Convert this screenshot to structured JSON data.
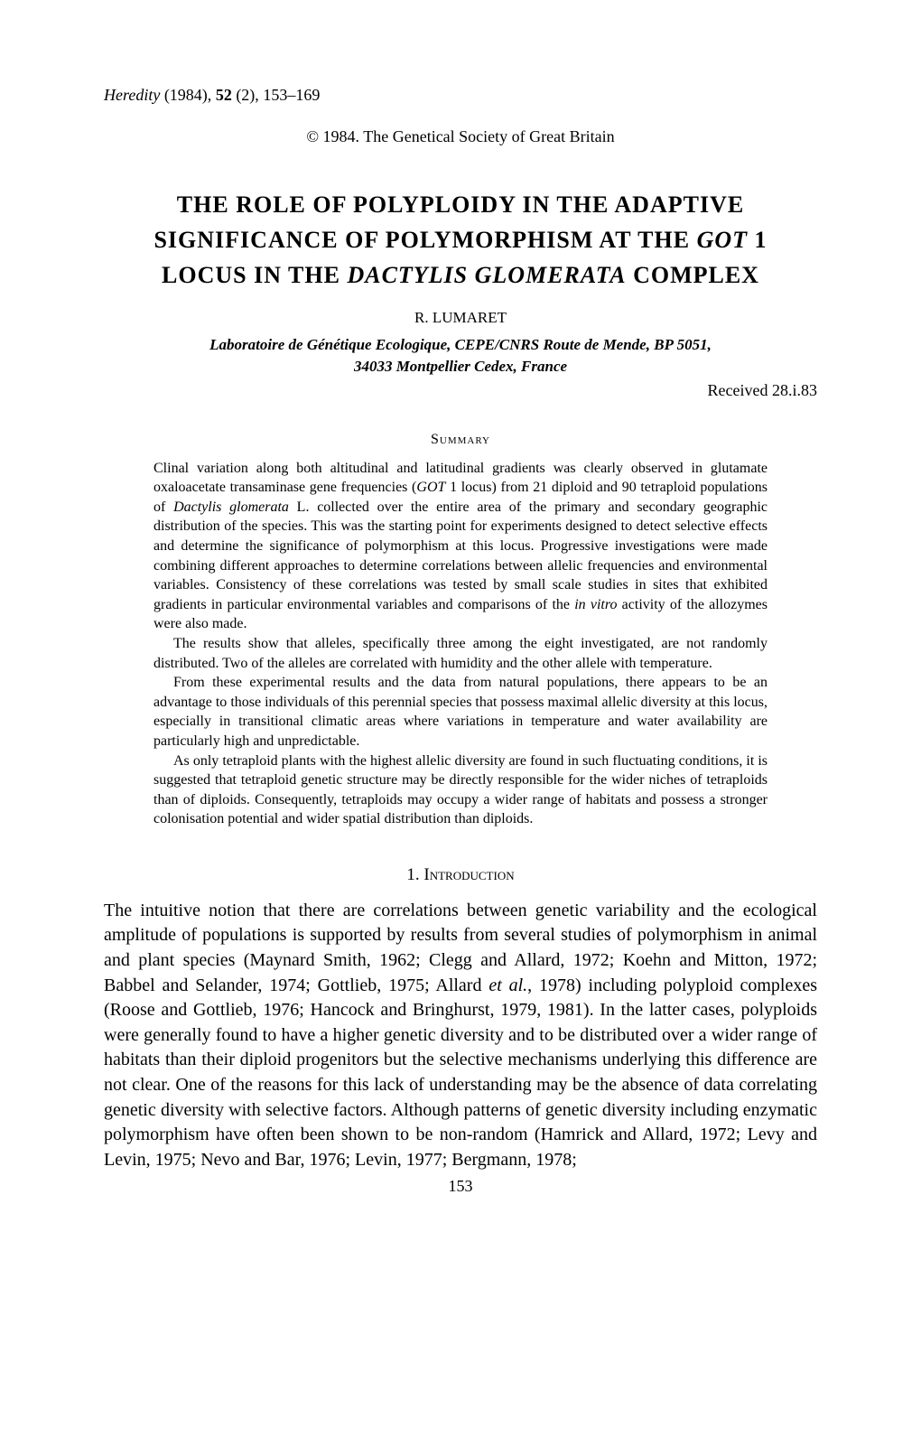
{
  "citation": {
    "journal": "Heredity",
    "year": "(1984),",
    "volume": "52",
    "issue": "(2),",
    "pages": "153–169"
  },
  "copyright": "© 1984. The Genetical Society of Great Britain",
  "title": {
    "line1": "THE ROLE OF POLYPLOIDY IN THE ADAPTIVE",
    "line2_pre": "SIGNIFICANCE OF POLYMORPHISM AT THE ",
    "line2_italic": "GOT",
    "line2_post": " 1",
    "line3_pre": "LOCUS IN THE ",
    "line3_italic": "DACTYLIS GLOMERATA",
    "line3_post": " COMPLEX"
  },
  "author": "R. LUMARET",
  "affiliation": {
    "line1": "Laboratoire de Génétique Ecologique, CEPE/CNRS Route de Mende, BP 5051,",
    "line2": "34033 Montpellier Cedex, France"
  },
  "received": "Received 28.i.83",
  "summary": {
    "heading": "Summary",
    "p1_a": "Clinal variation along both altitudinal and latitudinal gradients was clearly observed in glutamate oxaloacetate transaminase gene frequencies (",
    "p1_i1": "GOT",
    "p1_b": " 1 locus) from 21 diploid and 90 tetraploid populations of ",
    "p1_i2": "Dactylis glomerata",
    "p1_c": " L. collected over the entire area of the primary and secondary geographic distribution of the species. This was the starting point for experiments designed to detect selective effects and determine the significance of polymorphism at this locus. Progressive investigations were made combining different approaches to determine correlations between allelic frequencies and environmental variables. Consistency of these correlations was tested by small scale studies in sites that exhibited gradients in particular environmental variables and comparisons of the ",
    "p1_i3": "in vitro",
    "p1_d": " activity of the allozymes were also made.",
    "p2": "The results show that alleles, specifically three among the eight investigated, are not randomly distributed. Two of the alleles are correlated with humidity and the other allele with temperature.",
    "p3": "From these experimental results and the data from natural populations, there appears to be an advantage to those individuals of this perennial species that possess maximal allelic diversity at this locus, especially in transitional climatic areas where variations in temperature and water availability are particularly high and unpredictable.",
    "p4": "As only tetraploid plants with the highest allelic diversity are found in such fluctuating conditions, it is suggested that tetraploid genetic structure may be directly responsible for the wider niches of tetraploids than of diploids. Consequently, tetraploids may occupy a wider range of habitats and possess a stronger colonisation potential and wider spatial distribution than diploids."
  },
  "introduction": {
    "heading": "1. Introduction",
    "p1_a": "The intuitive notion that there are correlations between genetic variability and the ecological amplitude of populations is supported by results from several studies of polymorphism in animal and plant species (Maynard Smith, 1962; Clegg and Allard, 1972; Koehn and Mitton, 1972; Babbel and Selander, 1974; Gottlieb, 1975; Allard ",
    "p1_i1": "et al.",
    "p1_b": ", 1978) including polyploid complexes (Roose and Gottlieb, 1976; Hancock and Bringhurst, 1979, 1981). In the latter cases, polyploids were generally found to have a higher genetic diversity and to be distributed over a wider range of habitats than their diploid progenitors but the selective mechanisms underlying this difference are not clear. One of the reasons for this lack of understanding may be the absence of data correlating genetic diversity with selective factors. Although patterns of genetic diversity including enzymatic polymorphism have often been shown to be non-random (Hamrick and Allard, 1972; Levy and Levin, 1975; Nevo and Bar, 1976; Levin, 1977; Bergmann, 1978;"
  },
  "page_number": "153"
}
